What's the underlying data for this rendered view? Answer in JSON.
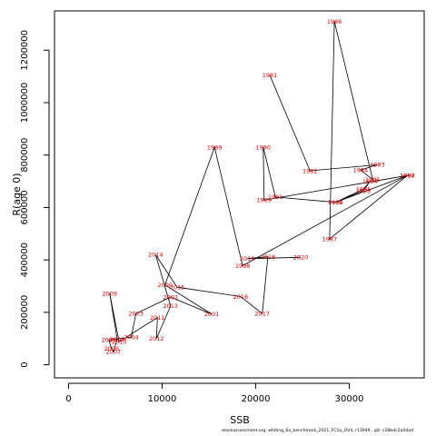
{
  "caption": "stockassessment.org,  whiting_6a_benchmark_2021_FC1a_OV4, r13949 ,  git: c28bdc2a44ad",
  "chart_data": {
    "type": "scatter",
    "subtype": "labeled-path",
    "title": "",
    "xlabel": "SSB",
    "ylabel": "R(age 0)",
    "xlim": [
      -1500,
      38000
    ],
    "ylim": [
      -50000,
      1350000
    ],
    "xticks": [
      0,
      10000,
      20000,
      30000
    ],
    "xtick_labels": [
      "0",
      "10000",
      "20000",
      "30000"
    ],
    "yticks": [
      0,
      200000,
      400000,
      600000,
      800000,
      1000000,
      1200000
    ],
    "ytick_labels": [
      "0",
      "200000",
      "400000",
      "600000",
      "800000",
      "1000000",
      "1200000"
    ],
    "grid": false,
    "line_color": "#000000",
    "label_color": "#e00000",
    "points": [
      {
        "year": "1981",
        "x": 21500,
        "y": 1105000
      },
      {
        "year": "1982",
        "x": 25800,
        "y": 740000
      },
      {
        "year": "1983",
        "x": 33000,
        "y": 763000
      },
      {
        "year": "1984",
        "x": 31200,
        "y": 743000
      },
      {
        "year": "1985",
        "x": 32500,
        "y": 707000
      },
      {
        "year": "1986",
        "x": 28400,
        "y": 1310000
      },
      {
        "year": "1987",
        "x": 27900,
        "y": 480000
      },
      {
        "year": "1988",
        "x": 36200,
        "y": 722000
      },
      {
        "year": "1989",
        "x": 20900,
        "y": 628000
      },
      {
        "year": "1990",
        "x": 20800,
        "y": 830000
      },
      {
        "year": "1991",
        "x": 22100,
        "y": 640000
      },
      {
        "year": "1992",
        "x": 28500,
        "y": 620000
      },
      {
        "year": "1993",
        "x": 31500,
        "y": 664000
      },
      {
        "year": "1994",
        "x": 32200,
        "y": 699000
      },
      {
        "year": "1995",
        "x": 31500,
        "y": 670000
      },
      {
        "year": "1996",
        "x": 28500,
        "y": 619000
      },
      {
        "year": "1997",
        "x": 36200,
        "y": 722000
      },
      {
        "year": "1998",
        "x": 18600,
        "y": 378000
      },
      {
        "year": "1999",
        "x": 15600,
        "y": 830000
      },
      {
        "year": "2000",
        "x": 10300,
        "y": 305000
      },
      {
        "year": "2001",
        "x": 15300,
        "y": 193000
      },
      {
        "year": "2002",
        "x": 10900,
        "y": 258000
      },
      {
        "year": "2003",
        "x": 7200,
        "y": 195000
      },
      {
        "year": "2004",
        "x": 6700,
        "y": 105000
      },
      {
        "year": "2005",
        "x": 4300,
        "y": 95000
      },
      {
        "year": "2006",
        "x": 4600,
        "y": 62000
      },
      {
        "year": "2007",
        "x": 4800,
        "y": 50000
      },
      {
        "year": "2008",
        "x": 5200,
        "y": 97000
      },
      {
        "year": "2009",
        "x": 4400,
        "y": 272000
      },
      {
        "year": "2010",
        "x": 5400,
        "y": 88000
      },
      {
        "year": "2011",
        "x": 9500,
        "y": 180000
      },
      {
        "year": "2012",
        "x": 9400,
        "y": 100000
      },
      {
        "year": "2013",
        "x": 10900,
        "y": 224000
      },
      {
        "year": "2014",
        "x": 9300,
        "y": 420000
      },
      {
        "year": "2015",
        "x": 11600,
        "y": 296000
      },
      {
        "year": "2016",
        "x": 18400,
        "y": 260000
      },
      {
        "year": "2017",
        "x": 20700,
        "y": 195000
      },
      {
        "year": "2018",
        "x": 21300,
        "y": 412000
      },
      {
        "year": "2019",
        "x": 19100,
        "y": 405000
      },
      {
        "year": "2020",
        "x": 24800,
        "y": 410000
      }
    ]
  }
}
